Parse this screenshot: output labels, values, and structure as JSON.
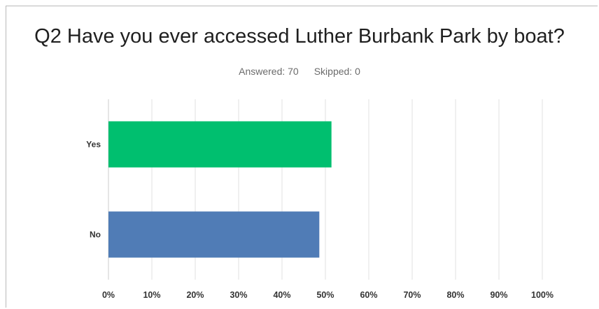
{
  "title": "Q2 Have you ever accessed Luther Burbank Park by boat?",
  "answered_label": "Answered: 70",
  "skipped_label": "Skipped: 0",
  "chart_data": {
    "type": "bar",
    "orientation": "horizontal",
    "categories": [
      "Yes",
      "No"
    ],
    "values": [
      51.4,
      48.6
    ],
    "colors": [
      "#00bf6f",
      "#507cb6"
    ],
    "xlim": [
      0,
      100
    ],
    "x_ticks": [
      "0%",
      "10%",
      "20%",
      "30%",
      "40%",
      "50%",
      "60%",
      "70%",
      "80%",
      "90%",
      "100%"
    ],
    "grid": true
  }
}
